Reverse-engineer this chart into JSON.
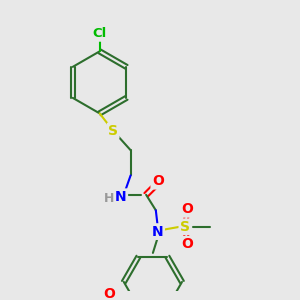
{
  "bg_color": "#e8e8e8",
  "bond_color": "#2d6e2d",
  "bond_width": 1.5,
  "atom_colors": {
    "Cl": "#00bb00",
    "S": "#cccc00",
    "N": "#0000ff",
    "O": "#ff0000",
    "C": "#2d6e2d",
    "H": "#999999"
  },
  "font_size": 9,
  "fig_size": [
    3.0,
    3.0
  ],
  "dpi": 100
}
